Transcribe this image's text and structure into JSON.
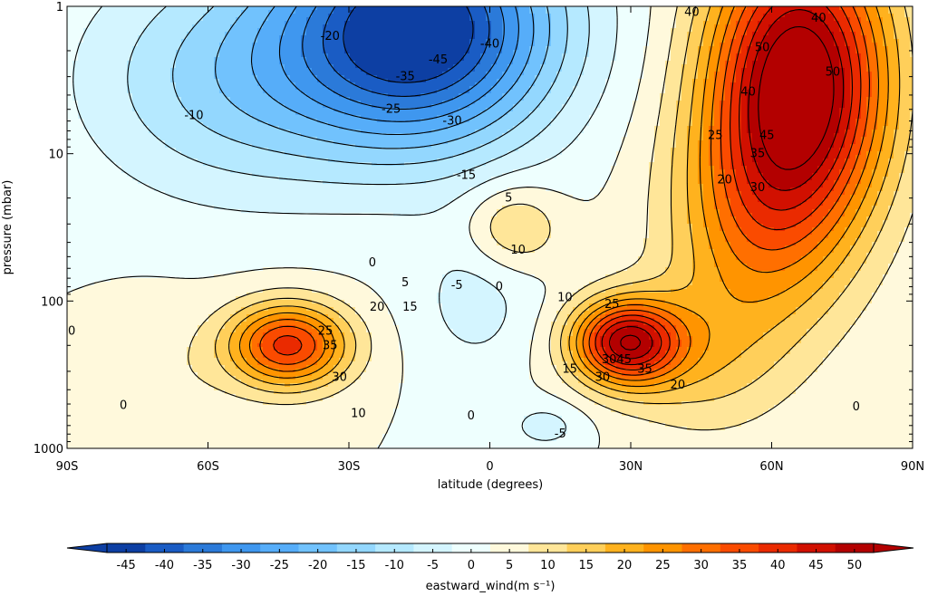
{
  "chart_data": {
    "type": "contourf",
    "x": {
      "label": "latitude (degrees)",
      "ticks": [
        -90,
        -60,
        -30,
        0,
        30,
        60,
        90
      ],
      "tick_labels": [
        "90S",
        "60S",
        "30S",
        "0",
        "30N",
        "60N",
        "90N"
      ],
      "range": [
        -90,
        90
      ]
    },
    "y": {
      "label": "pressure (mbar)",
      "scale": "log",
      "inverted": true,
      "ticks": [
        1,
        10,
        100,
        1000
      ],
      "tick_labels": [
        "1",
        "10",
        "100",
        "1000"
      ],
      "range": [
        1,
        1000
      ]
    },
    "colorbar": {
      "label": "eastward_wind(m s⁻¹)",
      "levels": [
        -45,
        -40,
        -35,
        -30,
        -25,
        -20,
        -15,
        -10,
        -5,
        0,
        5,
        10,
        15,
        20,
        25,
        30,
        35,
        40,
        45,
        50
      ],
      "tick_labels": [
        "-45",
        "-40",
        "-35",
        "-30",
        "-25",
        "-20",
        "-15",
        "-10",
        "-5",
        "0",
        "5",
        "10",
        "15",
        "20",
        "25",
        "30",
        "35",
        "40",
        "45",
        "50"
      ],
      "extend": "both",
      "colors": [
        "#0d3fa3",
        "#1a5cc4",
        "#2b7ad9",
        "#3f97ef",
        "#56adf9",
        "#71c2fd",
        "#93d7fe",
        "#b5e9ff",
        "#d4f5ff",
        "#eefffe",
        "#fff9dc",
        "#ffe699",
        "#ffcf5a",
        "#ffb21e",
        "#ff9400",
        "#ff6f00",
        "#fa4b00",
        "#ea2a00",
        "#d11000",
        "#b30000"
      ]
    },
    "features": [
      {
        "name": "southern stratospheric easterlies",
        "lat": -15,
        "p": 2,
        "value": -45
      },
      {
        "name": "southern subtropical jet",
        "lat": -45,
        "p": 200,
        "value": 35
      },
      {
        "name": "northern subtropical jet",
        "lat": 30,
        "p": 180,
        "value": 45
      },
      {
        "name": "northern polar night jet",
        "lat": 65,
        "p": 4,
        "value": 50
      },
      {
        "name": "equatorial westerly patch",
        "lat": 5,
        "p": 30,
        "value": 10
      }
    ],
    "contour_labels": [
      {
        "text": "-20",
        "lat": -34,
        "p": 1.6
      },
      {
        "text": "-10",
        "lat": -63,
        "p": 5.5
      },
      {
        "text": "-45",
        "lat": -11,
        "p": 2.3
      },
      {
        "text": "-35",
        "lat": -18,
        "p": 3.0
      },
      {
        "text": "-40",
        "lat": 0,
        "p": 1.8
      },
      {
        "text": "-25",
        "lat": -21,
        "p": 5.0
      },
      {
        "text": "-30",
        "lat": -8,
        "p": 6.0
      },
      {
        "text": "-15",
        "lat": -5,
        "p": 14
      },
      {
        "text": "5",
        "lat": 4,
        "p": 20
      },
      {
        "text": "10",
        "lat": 6,
        "p": 45
      },
      {
        "text": "0",
        "lat": -25,
        "p": 55
      },
      {
        "text": "5",
        "lat": -18,
        "p": 75
      },
      {
        "text": "-5",
        "lat": -7,
        "p": 78
      },
      {
        "text": "0",
        "lat": 2,
        "p": 80
      },
      {
        "text": "10",
        "lat": 16,
        "p": 95
      },
      {
        "text": "25",
        "lat": 26,
        "p": 105
      },
      {
        "text": "20",
        "lat": -24,
        "p": 110
      },
      {
        "text": "15",
        "lat": -17,
        "p": 110
      },
      {
        "text": "25",
        "lat": -35,
        "p": 160
      },
      {
        "text": "35",
        "lat": -34,
        "p": 200
      },
      {
        "text": "0",
        "lat": -89,
        "p": 160
      },
      {
        "text": "30",
        "lat": -32,
        "p": 330
      },
      {
        "text": "15",
        "lat": 17,
        "p": 290
      },
      {
        "text": "30",
        "lat": 24,
        "p": 330
      },
      {
        "text": "3045",
        "lat": 27,
        "p": 250
      },
      {
        "text": "35",
        "lat": 33,
        "p": 290
      },
      {
        "text": "20",
        "lat": 40,
        "p": 370
      },
      {
        "text": "0",
        "lat": -78,
        "p": 510
      },
      {
        "text": "10",
        "lat": -28,
        "p": 580
      },
      {
        "text": "0",
        "lat": -4,
        "p": 600
      },
      {
        "text": "-5",
        "lat": 15,
        "p": 800
      },
      {
        "text": "0",
        "lat": 78,
        "p": 520
      },
      {
        "text": "40",
        "lat": 43,
        "p": 1.1
      },
      {
        "text": "50",
        "lat": 58,
        "p": 1.9
      },
      {
        "text": "40",
        "lat": 70,
        "p": 1.2
      },
      {
        "text": "50",
        "lat": 73,
        "p": 2.8
      },
      {
        "text": "40",
        "lat": 55,
        "p": 3.8
      },
      {
        "text": "25",
        "lat": 48,
        "p": 7.5
      },
      {
        "text": "45",
        "lat": 59,
        "p": 7.5
      },
      {
        "text": "35",
        "lat": 57,
        "p": 10
      },
      {
        "text": "20",
        "lat": 50,
        "p": 15
      },
      {
        "text": "30",
        "lat": 57,
        "p": 17
      }
    ]
  }
}
